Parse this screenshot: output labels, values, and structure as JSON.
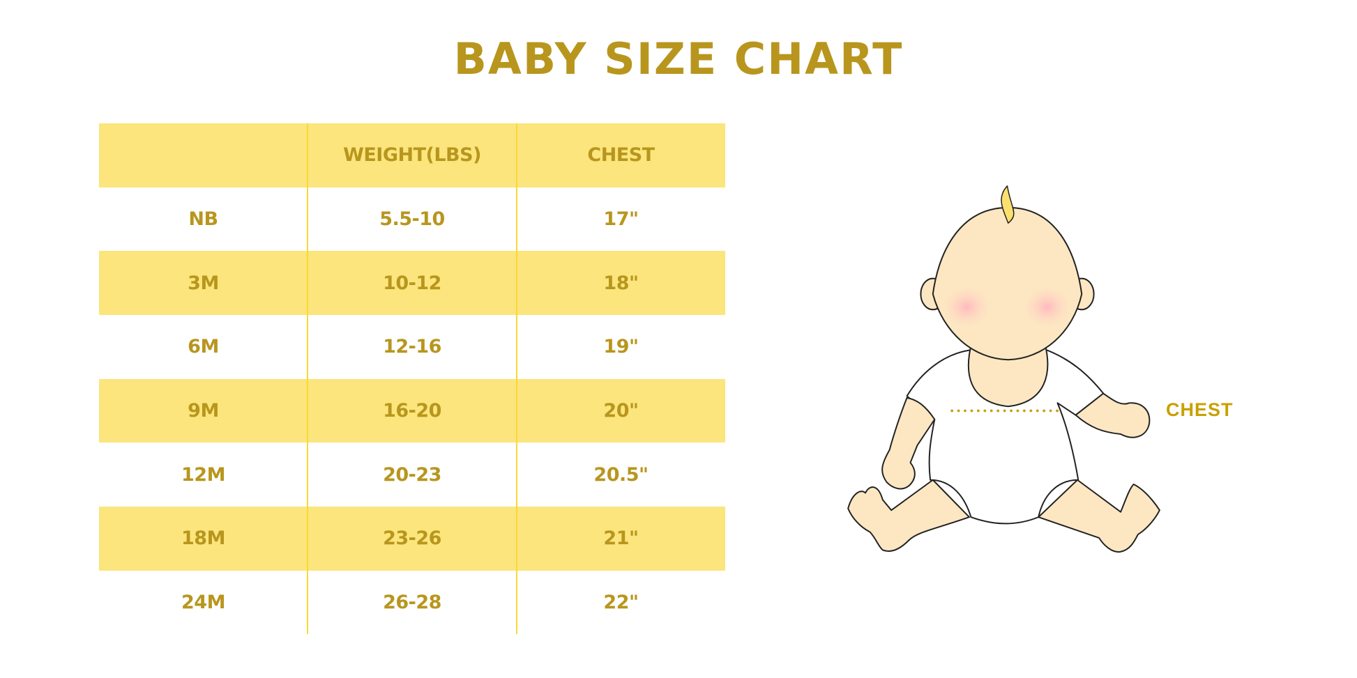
{
  "title": "BABY SIZE CHART",
  "table": {
    "headers": [
      "",
      "WEIGHT(LBS)",
      "CHEST"
    ],
    "rows": [
      [
        "NB",
        "5.5-10",
        "17\""
      ],
      [
        "3M",
        "10-12",
        "18\""
      ],
      [
        "6M",
        "12-16",
        "19\""
      ],
      [
        "9M",
        "16-20",
        "20\""
      ],
      [
        "12M",
        "20-23",
        "20.5\""
      ],
      [
        "18M",
        "23-26",
        "21\""
      ],
      [
        "24M",
        "26-28",
        "22\""
      ]
    ]
  },
  "illustration": {
    "chest_label": "CHEST"
  },
  "colors": {
    "text": "#b8961e",
    "row_shade": "#fbe57c",
    "divider": "#fcd834",
    "chest_label": "#c9a000",
    "skin": "#fde7c2"
  }
}
